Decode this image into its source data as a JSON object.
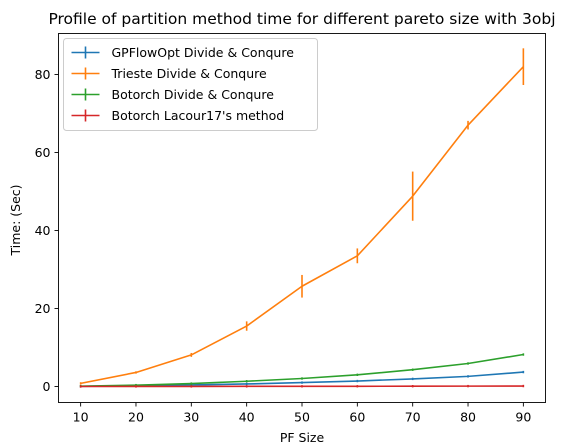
{
  "chart_data": {
    "type": "line",
    "title": "Profile of partition method time for different pareto size with 3obj",
    "xlabel": "PF Size",
    "ylabel": "Time: (Sec)",
    "x": [
      10,
      20,
      30,
      40,
      50,
      60,
      70,
      80,
      90
    ],
    "xlim": [
      6,
      94
    ],
    "ylim": [
      -4.1,
      90.5
    ],
    "xticks": [
      10,
      20,
      30,
      40,
      50,
      60,
      70,
      80,
      90
    ],
    "yticks": [
      0,
      20,
      40,
      60,
      80
    ],
    "grid": false,
    "legend_position": "top-left",
    "series": [
      {
        "name": "GPFlowOpt Divide & Conqure",
        "color": "#1f77b4",
        "values": [
          0.05,
          0.2,
          0.4,
          0.65,
          1.0,
          1.4,
          1.95,
          2.6,
          3.7
        ],
        "errors": [
          0,
          0,
          0,
          0,
          0,
          0,
          0,
          0,
          0
        ]
      },
      {
        "name": "Trieste Divide & Conqure",
        "color": "#ff7f0e",
        "values": [
          0.8,
          3.6,
          8.1,
          15.5,
          25.7,
          33.5,
          48.8,
          67.0,
          82.0
        ],
        "errors": [
          0.3,
          0.3,
          0.5,
          1.2,
          2.9,
          1.9,
          6.3,
          1.1,
          4.7
        ]
      },
      {
        "name": "Botorch Divide & Conqure",
        "color": "#2ca02c",
        "values": [
          0.1,
          0.35,
          0.75,
          1.35,
          2.05,
          3.0,
          4.3,
          5.9,
          8.2
        ],
        "errors": [
          0,
          0,
          0,
          0,
          0,
          0,
          0,
          0,
          0
        ]
      },
      {
        "name": "Botorch Lacour17's method",
        "color": "#d62728",
        "values": [
          0.0,
          0.02,
          0.03,
          0.04,
          0.05,
          0.06,
          0.08,
          0.1,
          0.12
        ],
        "errors": [
          0,
          0,
          0,
          0,
          0,
          0,
          0,
          0,
          0
        ]
      }
    ]
  }
}
